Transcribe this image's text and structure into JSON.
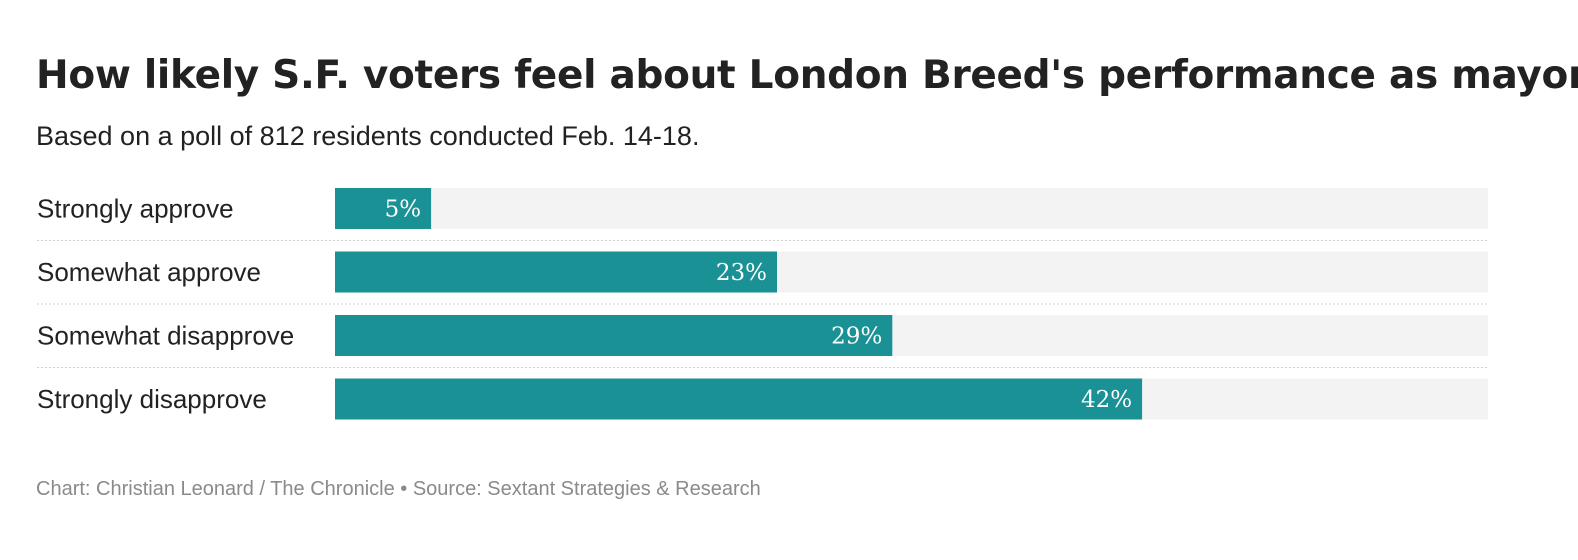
{
  "chart_data": {
    "type": "bar",
    "orientation": "horizontal",
    "title": "How likely S.F. voters feel about London Breed's performance as mayor",
    "subtitle": "Based on a poll of 812 residents conducted Feb. 14-18.",
    "categories": [
      "Strongly approve",
      "Somewhat approve",
      "Somewhat disapprove",
      "Strongly disapprove"
    ],
    "values": [
      5,
      23,
      29,
      42
    ],
    "value_labels": [
      "5%",
      "23%",
      "29%",
      "42%"
    ],
    "xlim": [
      0,
      60
    ],
    "unit": "%",
    "grid": false,
    "legend": "none",
    "credit": "Chart: Christian Leonard / The Chronicle • Source: Sextant Strategies & Research"
  },
  "colors": {
    "bar": "#1a9194",
    "track": "#f3f3f3",
    "divider": "#cfcfcf"
  }
}
